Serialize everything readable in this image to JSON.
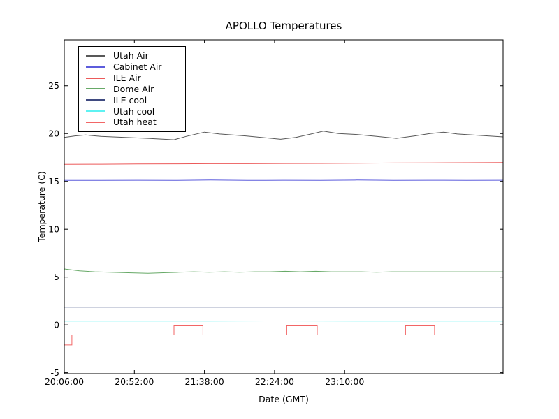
{
  "chart_data": {
    "type": "line",
    "title": "APOLLO Temperatures",
    "xlabel": "Date (GMT)",
    "ylabel": "Temperature (C)",
    "x_unit": "minutes after 20:06:00",
    "xlim": [
      0,
      288
    ],
    "ylim": [
      -5.1,
      29.8
    ],
    "grid": false,
    "legend_position": "upper left",
    "x_ticks": [
      {
        "x": 0,
        "label": "20:06:00"
      },
      {
        "x": 46,
        "label": "20:52:00"
      },
      {
        "x": 92,
        "label": "21:38:00"
      },
      {
        "x": 138,
        "label": "22:24:00"
      },
      {
        "x": 184,
        "label": "23:10:00"
      }
    ],
    "y_ticks": [
      {
        "v": -5,
        "label": "-5"
      },
      {
        "v": 0,
        "label": "0"
      },
      {
        "v": 5,
        "label": "5"
      },
      {
        "v": 10,
        "label": "10"
      },
      {
        "v": 15,
        "label": "15"
      },
      {
        "v": 20,
        "label": "20"
      },
      {
        "v": 25,
        "label": "25"
      }
    ],
    "series": [
      {
        "name": "Utah Air",
        "color": "#585858",
        "points": [
          [
            0,
            19.6
          ],
          [
            7,
            19.75
          ],
          [
            14,
            19.85
          ],
          [
            24,
            19.7
          ],
          [
            40,
            19.6
          ],
          [
            55,
            19.5
          ],
          [
            72,
            19.35
          ],
          [
            80,
            19.7
          ],
          [
            92,
            20.15
          ],
          [
            102,
            19.95
          ],
          [
            119,
            19.75
          ],
          [
            142,
            19.4
          ],
          [
            152,
            19.6
          ],
          [
            162,
            19.95
          ],
          [
            170,
            20.25
          ],
          [
            180,
            20.0
          ],
          [
            192,
            19.9
          ],
          [
            205,
            19.7
          ],
          [
            218,
            19.5
          ],
          [
            230,
            19.75
          ],
          [
            240,
            20.0
          ],
          [
            249,
            20.15
          ],
          [
            258,
            19.95
          ],
          [
            268,
            19.85
          ],
          [
            278,
            19.75
          ],
          [
            288,
            19.65
          ]
        ]
      },
      {
        "name": "Cabinet Air",
        "color": "#5c5cdc",
        "points": [
          [
            0,
            15.1
          ],
          [
            24,
            15.1
          ],
          [
            48,
            15.12
          ],
          [
            72,
            15.1
          ],
          [
            96,
            15.14
          ],
          [
            120,
            15.1
          ],
          [
            144,
            15.12
          ],
          [
            168,
            15.1
          ],
          [
            192,
            15.14
          ],
          [
            216,
            15.1
          ],
          [
            240,
            15.12
          ],
          [
            264,
            15.1
          ],
          [
            288,
            15.12
          ]
        ]
      },
      {
        "name": "ILE Air",
        "color": "#ec5a5a",
        "points": [
          [
            0,
            16.78
          ],
          [
            24,
            16.8
          ],
          [
            48,
            16.82
          ],
          [
            72,
            16.83
          ],
          [
            96,
            16.85
          ],
          [
            120,
            16.85
          ],
          [
            144,
            16.87
          ],
          [
            168,
            16.88
          ],
          [
            192,
            16.9
          ],
          [
            216,
            16.92
          ],
          [
            240,
            16.93
          ],
          [
            264,
            16.95
          ],
          [
            288,
            16.97
          ]
        ]
      },
      {
        "name": "Dome Air",
        "color": "#67a967",
        "points": [
          [
            0,
            5.85
          ],
          [
            10,
            5.65
          ],
          [
            20,
            5.55
          ],
          [
            30,
            5.5
          ],
          [
            42,
            5.45
          ],
          [
            55,
            5.4
          ],
          [
            65,
            5.45
          ],
          [
            75,
            5.5
          ],
          [
            85,
            5.55
          ],
          [
            95,
            5.5
          ],
          [
            105,
            5.55
          ],
          [
            115,
            5.5
          ],
          [
            125,
            5.55
          ],
          [
            135,
            5.55
          ],
          [
            145,
            5.6
          ],
          [
            155,
            5.55
          ],
          [
            165,
            5.6
          ],
          [
            175,
            5.55
          ],
          [
            185,
            5.55
          ],
          [
            195,
            5.55
          ],
          [
            205,
            5.5
          ],
          [
            215,
            5.55
          ],
          [
            225,
            5.55
          ],
          [
            235,
            5.55
          ],
          [
            245,
            5.55
          ],
          [
            255,
            5.55
          ],
          [
            265,
            5.55
          ],
          [
            275,
            5.55
          ],
          [
            288,
            5.55
          ]
        ]
      },
      {
        "name": "ILE cool",
        "color": "#3f4a80",
        "points": [
          [
            0,
            1.85
          ],
          [
            48,
            1.85
          ],
          [
            96,
            1.86
          ],
          [
            144,
            1.85
          ],
          [
            192,
            1.85
          ],
          [
            240,
            1.85
          ],
          [
            288,
            1.85
          ]
        ]
      },
      {
        "name": "Utah cool",
        "color": "#5ef2f2",
        "points": [
          [
            0,
            0.4
          ],
          [
            48,
            0.4
          ],
          [
            96,
            0.4
          ],
          [
            144,
            0.41
          ],
          [
            192,
            0.4
          ],
          [
            240,
            0.4
          ],
          [
            288,
            0.4
          ]
        ]
      },
      {
        "name": "Utah heat",
        "color": "#f26666",
        "points": [
          [
            0,
            -2.1
          ],
          [
            5,
            -2.1
          ],
          [
            5,
            -1.05
          ],
          [
            72,
            -1.05
          ],
          [
            72,
            -0.1
          ],
          [
            91,
            -0.1
          ],
          [
            91,
            -1.05
          ],
          [
            146,
            -1.05
          ],
          [
            146,
            -0.1
          ],
          [
            166,
            -0.1
          ],
          [
            166,
            -1.05
          ],
          [
            224,
            -1.05
          ],
          [
            224,
            -0.1
          ],
          [
            243,
            -0.1
          ],
          [
            243,
            -1.05
          ],
          [
            288,
            -1.05
          ]
        ]
      }
    ]
  },
  "colors": {
    "background": "#ffffff",
    "axes": "#000000",
    "text": "#000000"
  }
}
